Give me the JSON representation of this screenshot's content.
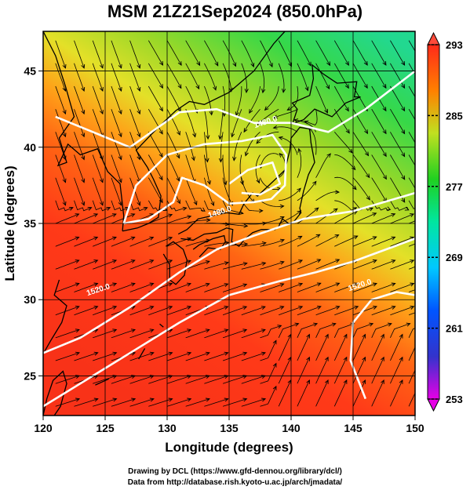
{
  "title": "MSM 21Z21Sep2024 (850.0hPa)",
  "footer": {
    "line1": "Drawing by DCL (https://www.gfd-dennou.org/library/dcl/)",
    "line2": "Data from http://database.rish.kyoto-u.ac.jp/arch/jmadata/"
  },
  "chart_data": {
    "type": "heatmap",
    "title": "MSM 21Z21Sep2024 (850.0hPa)",
    "xlabel": "Longitude (degrees)",
    "ylabel": "Latitude  (degrees)",
    "xlim": [
      120,
      150
    ],
    "ylim": [
      22.4,
      47.6
    ],
    "x_ticks": [
      120,
      125,
      130,
      135,
      140,
      145,
      150
    ],
    "y_ticks": [
      25,
      30,
      35,
      40,
      45
    ],
    "grid": true,
    "colorbar": {
      "range": [
        253,
        293
      ],
      "ticks": [
        253,
        261,
        269,
        277,
        285,
        293
      ],
      "position": "right"
    },
    "contours": [
      {
        "label": "1480.0",
        "lon": 138.0,
        "lat": 41.5
      },
      {
        "label": "1480.0",
        "lon": 134.3,
        "lat": 35.6
      },
      {
        "label": "1520.0",
        "lon": 124.5,
        "lat": 30.5
      },
      {
        "label": "1520.0",
        "lon": 145.6,
        "lat": 30.8
      }
    ],
    "colors": {
      "coast": "#000000",
      "streamline": "#000000",
      "contour": "#ffffff",
      "grid": "#000000"
    }
  }
}
